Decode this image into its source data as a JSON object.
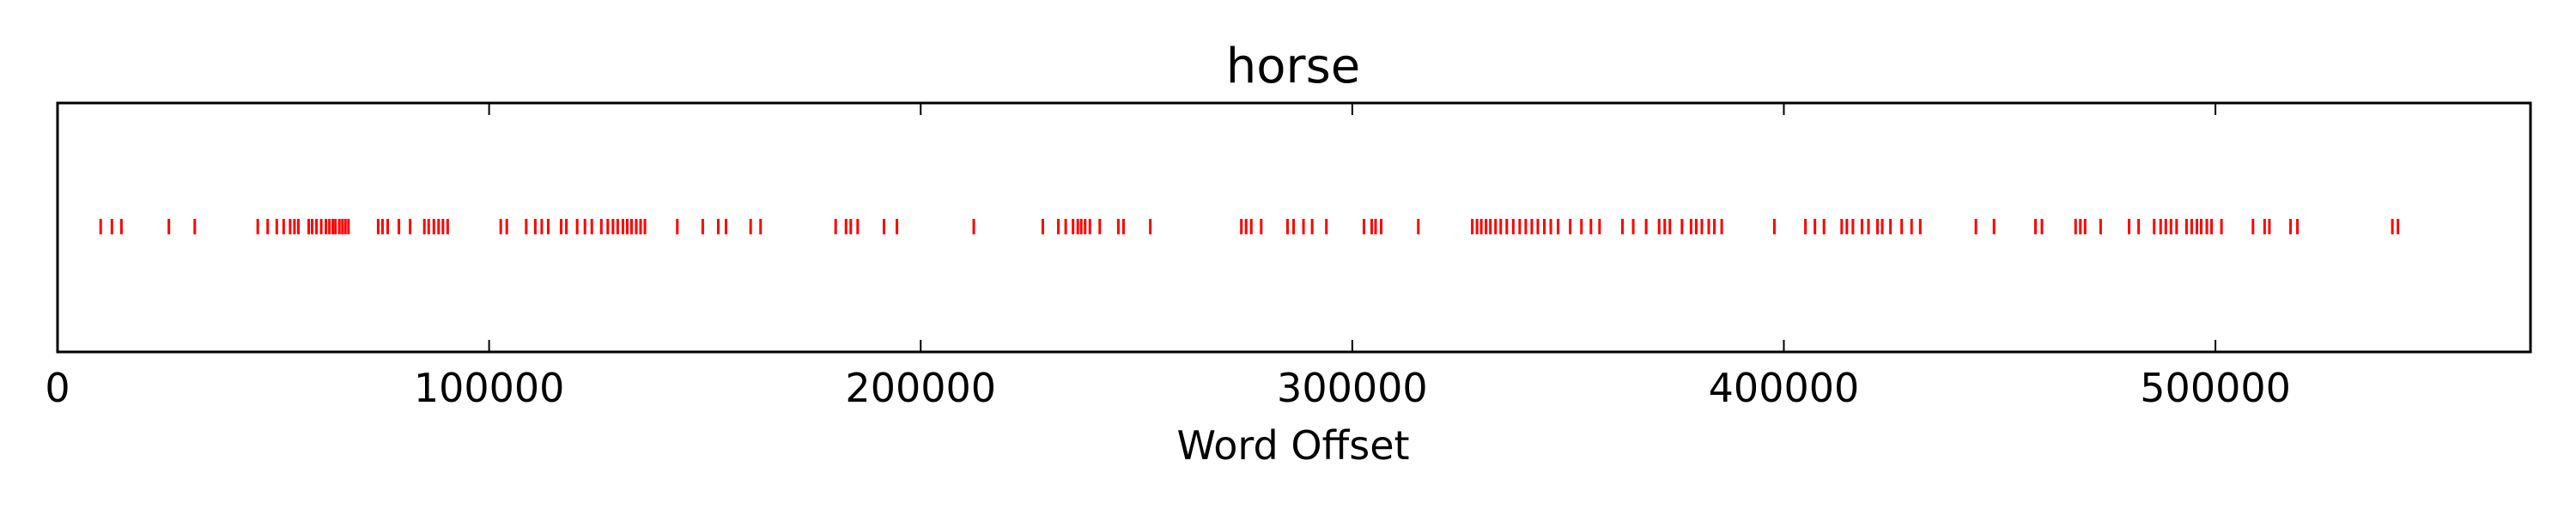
{
  "chart_data": {
    "type": "scatter",
    "title": "horse",
    "xlabel": "Word Offset",
    "ylabel": "",
    "xlim": [
      0,
      573000
    ],
    "xticks": [
      0,
      100000,
      200000,
      300000,
      400000,
      500000
    ],
    "xtick_labels": [
      "0",
      "100000",
      "200000",
      "300000",
      "400000",
      "500000"
    ],
    "grid": false,
    "marker": "|",
    "color": "#ff0000",
    "series": [
      {
        "values": [
          10000,
          12600,
          14800,
          25800,
          31800,
          46400,
          48700,
          50800,
          52400,
          53900,
          54900,
          55800,
          58200,
          59000,
          60000,
          61100,
          62200,
          63000,
          63800,
          64400,
          65300,
          66000,
          66700,
          67400,
          74300,
          75300,
          76500,
          79100,
          81700,
          85000,
          86000,
          87200,
          88300,
          89300,
          90400,
          102700,
          104100,
          108600,
          110700,
          112200,
          113700,
          116700,
          117900,
          120400,
          122200,
          123800,
          126000,
          127500,
          128700,
          129800,
          131000,
          132000,
          133000,
          134100,
          135100,
          136100,
          143600,
          149500,
          153100,
          154900,
          160600,
          162900,
          180300,
          182700,
          183800,
          185400,
          191500,
          194500,
          212300,
          228300,
          231900,
          233600,
          235300,
          236400,
          237200,
          238100,
          239200,
          241500,
          245800,
          247000,
          253200,
          274300,
          275400,
          276600,
          278900,
          285000,
          286400,
          288700,
          290700,
          294000,
          302700,
          304500,
          305400,
          306700,
          315300,
          327800,
          328900,
          329900,
          331000,
          332000,
          333200,
          334400,
          335800,
          337300,
          338800,
          340200,
          341600,
          343000,
          344500,
          346000,
          347700,
          350500,
          353100,
          355300,
          357300,
          362600,
          365100,
          368100,
          371100,
          372400,
          373600,
          376400,
          378500,
          379700,
          381000,
          382600,
          383900,
          385600,
          397800,
          405000,
          407200,
          409300,
          413400,
          414600,
          416000,
          418100,
          419600,
          421700,
          422800,
          424700,
          427300,
          429600,
          431600,
          444500,
          448700,
          458300,
          459800,
          467600,
          468700,
          469800,
          473400,
          480000,
          482200,
          485800,
          487300,
          488500,
          489700,
          491000,
          493300,
          494500,
          495700,
          496700,
          498000,
          499100,
          501400,
          508700,
          511400,
          512500,
          517400,
          519000,
          541000,
          542300
        ]
      }
    ]
  }
}
